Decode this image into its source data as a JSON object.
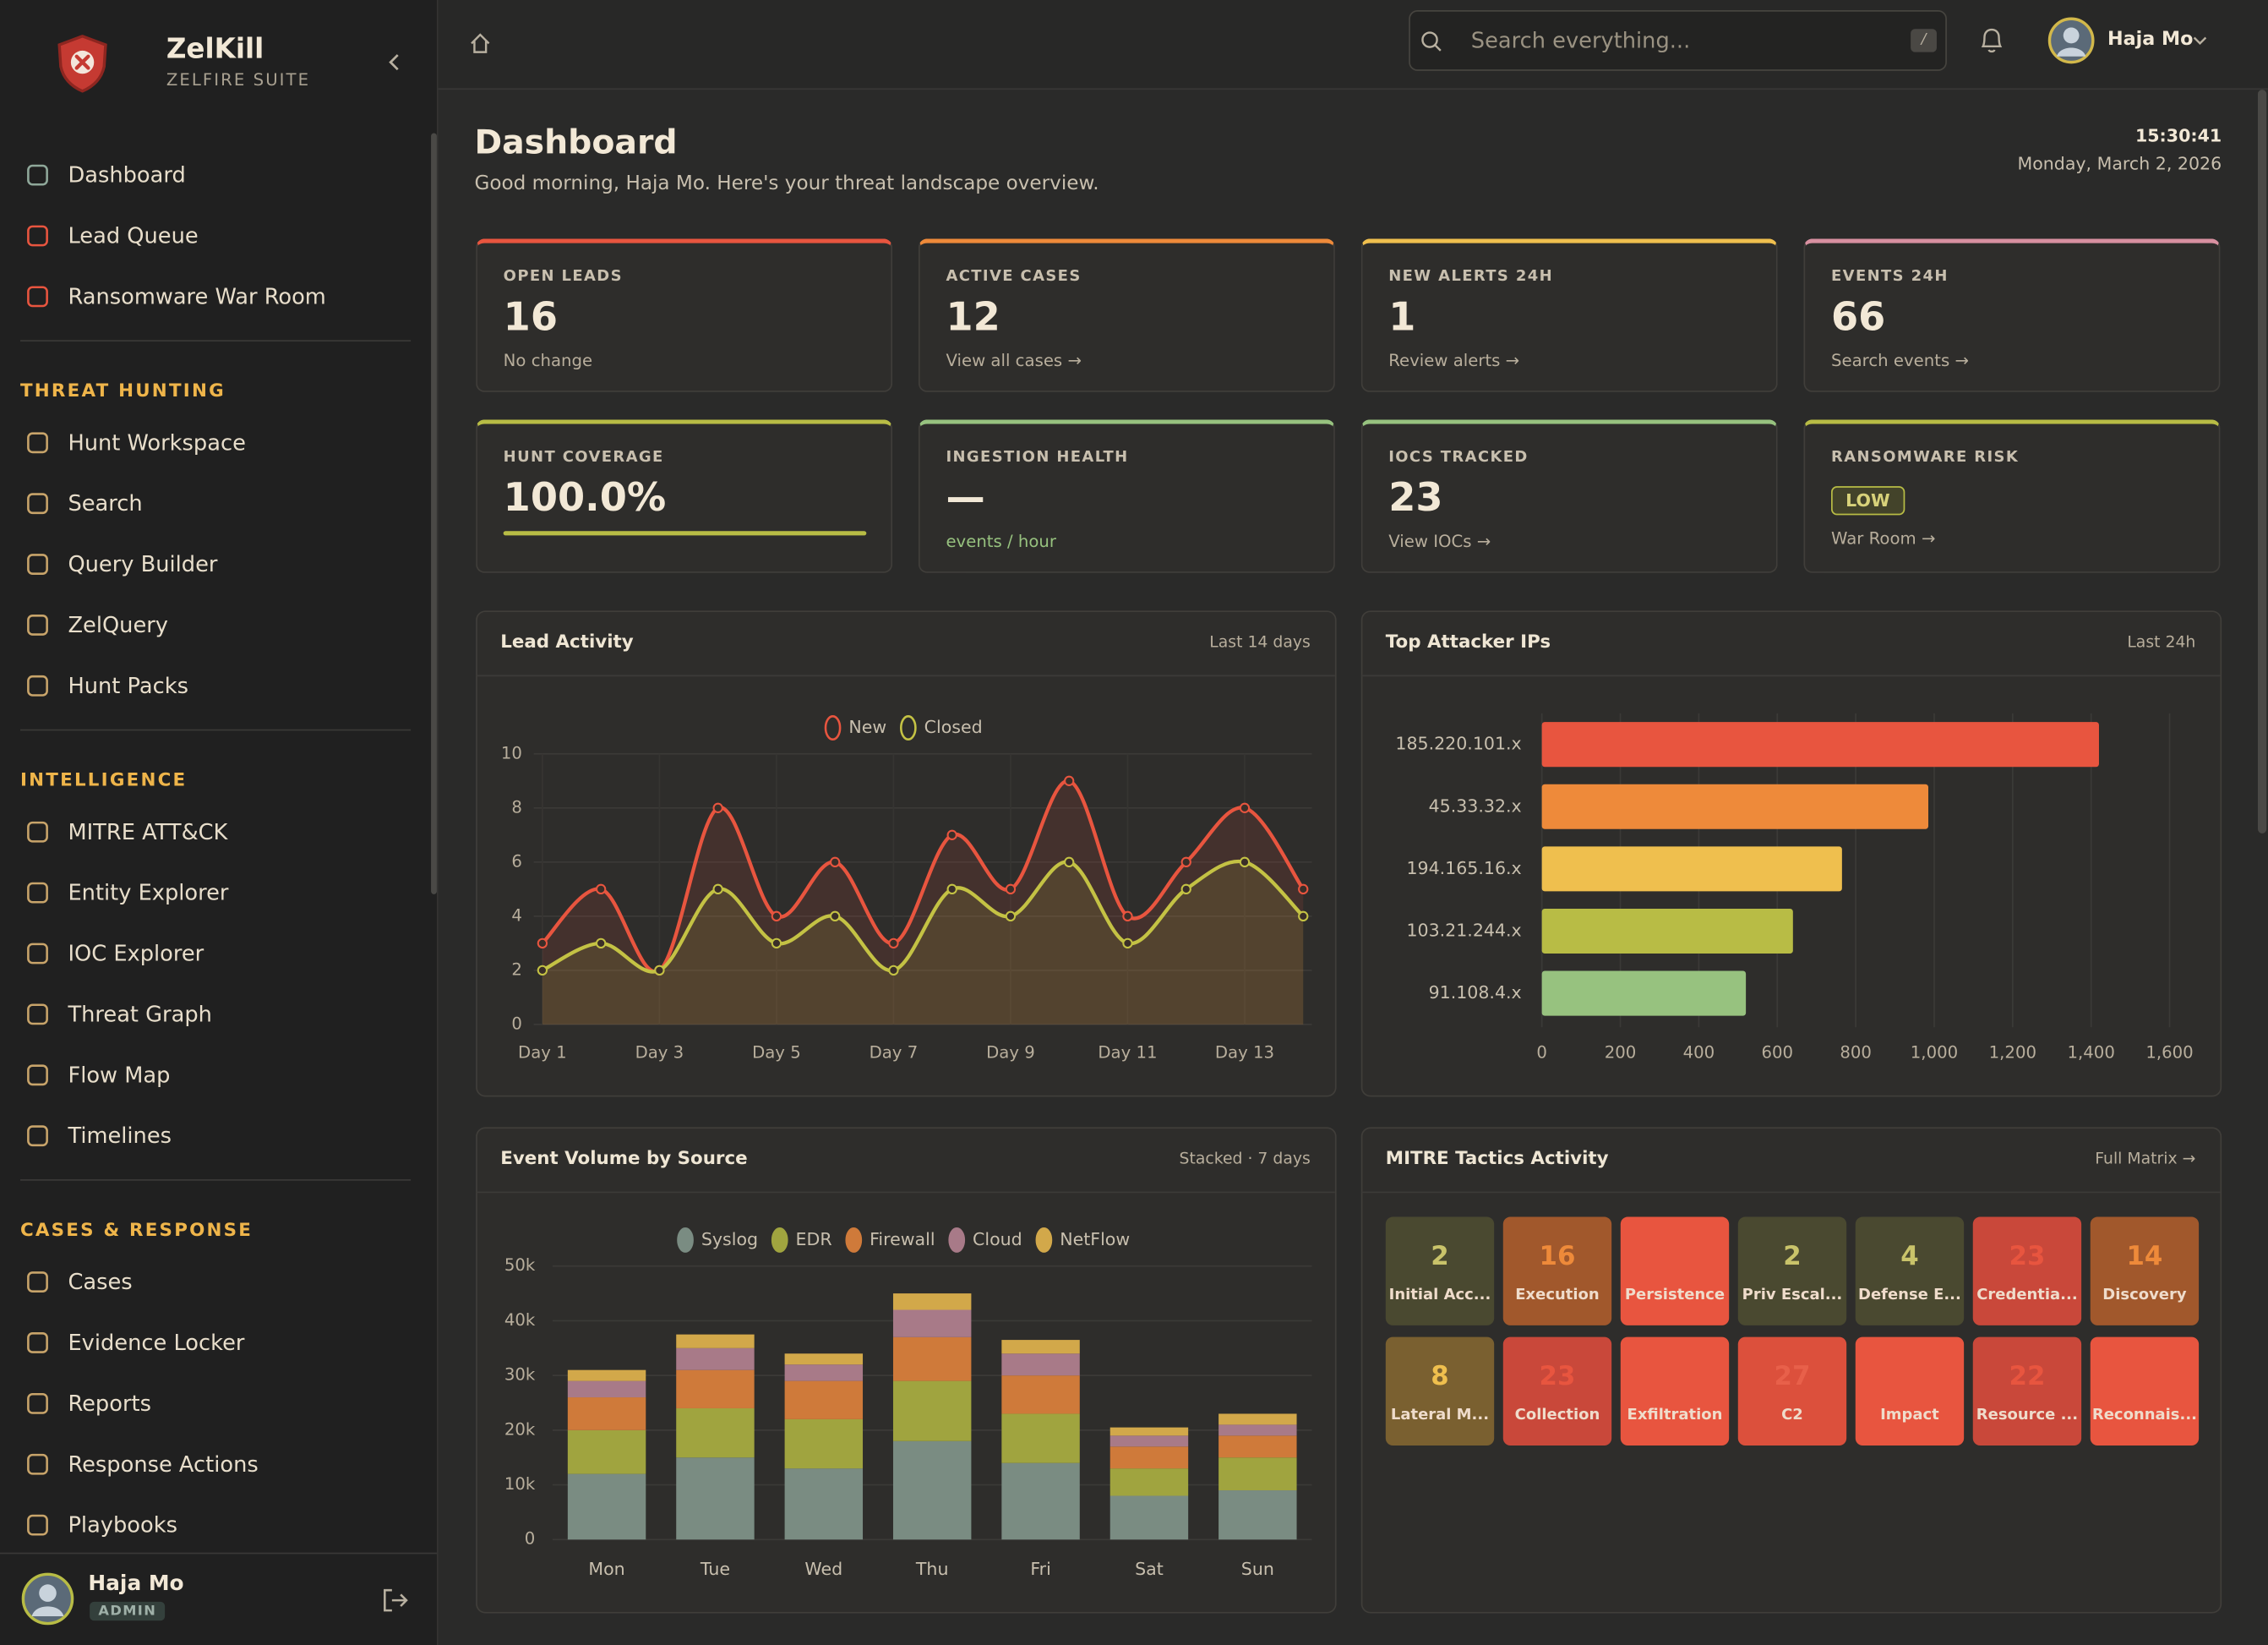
{
  "sidebar": {
    "brand": "ZelKill",
    "suite": "ZELFIRE SUITE",
    "groups": [
      {
        "items": [
          "Dashboard",
          "Lead Queue",
          "Ransomware War Room"
        ]
      },
      {
        "title": "THREAT HUNTING",
        "items": [
          "Hunt Workspace",
          "Search",
          "Query Builder",
          "ZelQuery",
          "Hunt Packs"
        ]
      },
      {
        "title": "INTELLIGENCE",
        "items": [
          "MITRE ATT&CK",
          "Entity Explorer",
          "IOC Explorer",
          "Threat Graph",
          "Flow Map",
          "Timelines"
        ]
      },
      {
        "title": "CASES & RESPONSE",
        "items": [
          "Cases",
          "Evidence Locker",
          "Reports",
          "Response Actions",
          "Playbooks"
        ]
      }
    ],
    "user": {
      "name": "Haja Mo",
      "role": "ADMIN"
    }
  },
  "header": {
    "search_placeholder": "Search everything...",
    "shortcut": "/",
    "user": "Haja Mo"
  },
  "page": {
    "title": "Dashboard",
    "subtitle": "Good morning, Haja Mo. Here's your threat landscape overview.",
    "time": "15:30:41",
    "date": "Monday, March 2, 2026"
  },
  "kpis": [
    {
      "label": "OPEN LEADS",
      "value": 16,
      "note": "No change",
      "color": "#e8553f"
    },
    {
      "label": "ACTIVE CASES",
      "value": 12,
      "note": "View all cases →",
      "color": "#ee8a3a"
    },
    {
      "label": "NEW ALERTS 24H",
      "value": 1,
      "note": "Review alerts →",
      "color": "#efbf4e"
    },
    {
      "label": "EVENTS 24H",
      "value": 66,
      "note": "Search events →",
      "color": "#d890a0"
    },
    {
      "label": "HUNT COVERAGE",
      "value": 100,
      "value_label": "100.0%",
      "color": "#b8bc45"
    },
    {
      "label": "INGESTION HEALTH",
      "value": "—",
      "note": "events / hour",
      "color": "#97c27f"
    },
    {
      "label": "IOCS TRACKED",
      "value": 23,
      "note": "View IOCs →",
      "color": "#97c27f"
    },
    {
      "label": "RANSOMWARE RISK",
      "badge": "LOW",
      "note": "War Room →",
      "color": "#b8bc45"
    }
  ],
  "chart_data": [
    {
      "type": "line",
      "title": "Lead Activity",
      "subtitle": "Last 14 days",
      "categories": [
        "Day 1",
        null,
        "Day 3",
        null,
        "Day 5",
        null,
        "Day 7",
        null,
        "Day 9",
        null,
        "Day 11",
        null,
        "Day 13",
        null
      ],
      "series": [
        {
          "name": "New",
          "color": "#e8553f",
          "values": [
            3,
            5,
            2,
            8,
            4,
            6,
            3,
            7,
            5,
            9,
            4,
            6,
            8,
            5
          ]
        },
        {
          "name": "Closed",
          "color": "#c4c244",
          "values": [
            2,
            3,
            2,
            5,
            3,
            4,
            2,
            5,
            4,
            6,
            3,
            5,
            6,
            4
          ]
        }
      ],
      "ylim": [
        0,
        10
      ],
      "yticks": [
        0,
        2,
        4,
        6,
        8,
        10
      ],
      "grid": true
    },
    {
      "type": "bar",
      "horizontal": true,
      "title": "Top Attacker IPs",
      "subtitle": "Last 24h",
      "categories": [
        "185.220.101.x",
        "45.33.32.x",
        "194.165.16.x",
        "103.21.244.x",
        "91.108.4.x"
      ],
      "values": [
        1420,
        985,
        765,
        640,
        520
      ],
      "colors": [
        "#e8553f",
        "#ee8a3a",
        "#efbf4e",
        "#b8bc45",
        "#97c27f"
      ],
      "xlim": [
        0,
        1600
      ],
      "xticks": [
        0,
        200,
        400,
        600,
        800,
        {
          "value": 1000,
          "label": "1,000"
        },
        {
          "value": 1200,
          "label": "1,200"
        },
        {
          "value": 1400,
          "label": "1,400"
        },
        {
          "value": 1600,
          "label": "1,600"
        }
      ],
      "grid": true
    },
    {
      "type": "bar",
      "stacked": true,
      "title": "Event Volume by Source",
      "subtitle": "Stacked · 7 days",
      "categories": [
        "Mon",
        "Tue",
        "Wed",
        "Thu",
        "Fri",
        "Sat",
        "Sun"
      ],
      "series": [
        {
          "name": "Syslog",
          "color": "#7a8c82",
          "values": [
            12000,
            15000,
            13000,
            18000,
            14000,
            8000,
            9000
          ]
        },
        {
          "name": "EDR",
          "color": "#a0a43f",
          "values": [
            8000,
            9000,
            9000,
            11000,
            9000,
            5000,
            6000
          ]
        },
        {
          "name": "Firewall",
          "color": "#cf7a3a",
          "values": [
            6000,
            7000,
            7000,
            8000,
            7000,
            4000,
            4000
          ]
        },
        {
          "name": "Cloud",
          "color": "#a87a88",
          "values": [
            3000,
            4000,
            3000,
            5000,
            4000,
            2000,
            2000
          ]
        },
        {
          "name": "NetFlow",
          "color": "#d2a84a",
          "values": [
            2000,
            2500,
            2000,
            3000,
            2500,
            1500,
            2000
          ]
        }
      ],
      "ylim": [
        0,
        50000
      ],
      "yticks": [
        0,
        {
          "value": 10000,
          "label": "10k"
        },
        {
          "value": 20000,
          "label": "20k"
        },
        {
          "value": 30000,
          "label": "30k"
        },
        {
          "value": 40000,
          "label": "40k"
        },
        {
          "value": 50000,
          "label": "50k"
        }
      ],
      "grid": true
    }
  ],
  "mitre": {
    "title": "MITRE Tactics Activity",
    "link": "Full Matrix →",
    "tiles": [
      {
        "count": 2,
        "label": "Initial Acc...",
        "bg": "#4a4930",
        "fg": "#c9c36a"
      },
      {
        "count": 16,
        "label": "Execution",
        "bg": "#a1582c",
        "fg": "#ee8a3a"
      },
      {
        "label": "Persistence",
        "bg": "#e8553f",
        "fg": "#e8553f"
      },
      {
        "count": 2,
        "label": "Priv Escal...",
        "bg": "#4a4930",
        "fg": "#c9c36a"
      },
      {
        "count": 4,
        "label": "Defense E...",
        "bg": "#4a4930",
        "fg": "#c9c36a"
      },
      {
        "count": 23,
        "label": "Credentia...",
        "bg": "#c9483a",
        "fg": "#e8553f"
      },
      {
        "count": 14,
        "label": "Discovery",
        "bg": "#a1582c",
        "fg": "#ee8a3a"
      },
      {
        "count": 8,
        "label": "Lateral M...",
        "bg": "#7a6030",
        "fg": "#efbf4e"
      },
      {
        "count": 23,
        "label": "Collection",
        "bg": "#c9483a",
        "fg": "#e8553f"
      },
      {
        "label": "Exfiltration",
        "bg": "#e8553f",
        "fg": "#e8553f"
      },
      {
        "count": 27,
        "label": "C2",
        "bg": "#dc503c",
        "fg": "#e8604a"
      },
      {
        "label": "Impact",
        "bg": "#e8553f",
        "fg": "#e8553f"
      },
      {
        "count": 22,
        "label": "Resource ...",
        "bg": "#c9483a",
        "fg": "#e8553f"
      },
      {
        "label": "Reconnais...",
        "bg": "#e8553f",
        "fg": "#e8553f"
      }
    ]
  }
}
